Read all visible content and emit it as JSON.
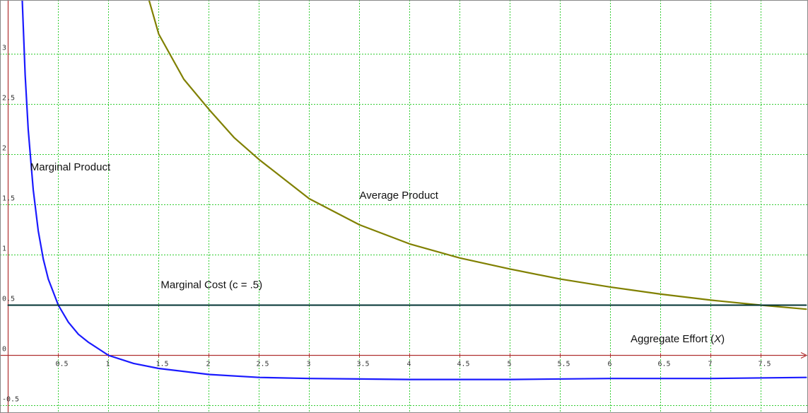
{
  "chart_data": {
    "type": "line",
    "title": "",
    "xlabel": "",
    "ylabel": "",
    "xlim": [
      0,
      7.95
    ],
    "ylim": [
      -0.65,
      3.55
    ],
    "grid": true,
    "x_ticks": [
      0.5,
      1,
      1.5,
      2,
      2.5,
      3,
      3.5,
      4,
      4.5,
      5,
      5.5,
      6,
      6.5,
      7,
      7.5
    ],
    "x_tick_labels": [
      "0.5",
      "1",
      "1.5",
      "2",
      "2.5",
      "3",
      "3.5",
      "4",
      "4.5",
      "5",
      "5.5",
      "6",
      "6.5",
      "7",
      "7.5"
    ],
    "y_ticks": [
      -0.5,
      0,
      0.5,
      1,
      1.5,
      2,
      2.5,
      3
    ],
    "y_tick_labels": [
      "-0.5",
      "0",
      "0.5",
      "1",
      "1.5",
      "2",
      "2.5",
      "3"
    ],
    "series": [
      {
        "name": "Marginal Product",
        "color": "#1a1aff",
        "x": [
          0.14,
          0.17,
          0.2,
          0.25,
          0.3,
          0.35,
          0.4,
          0.5,
          0.6,
          0.7,
          0.8,
          1.0,
          1.25,
          1.5,
          2.0,
          2.5,
          3.0,
          4.0,
          5.0,
          6.0,
          7.0,
          7.95
        ],
        "y": [
          3.55,
          2.79,
          2.25,
          1.65,
          1.24,
          0.96,
          0.76,
          0.5,
          0.33,
          0.21,
          0.13,
          0.0,
          -0.08,
          -0.13,
          -0.19,
          -0.22,
          -0.23,
          -0.24,
          -0.24,
          -0.23,
          -0.23,
          -0.22
        ]
      },
      {
        "name": "Average Product",
        "color": "#808000",
        "x": [
          1.4,
          1.5,
          1.75,
          2.0,
          2.25,
          2.5,
          3.0,
          3.5,
          4.0,
          4.5,
          5.0,
          5.5,
          6.0,
          6.5,
          7.0,
          7.5,
          7.95
        ],
        "y": [
          3.55,
          3.2,
          2.75,
          2.45,
          2.17,
          1.95,
          1.56,
          1.3,
          1.11,
          0.97,
          0.86,
          0.76,
          0.68,
          0.61,
          0.55,
          0.5,
          0.46
        ]
      },
      {
        "name": "Marginal Cost (c = .5)",
        "color": "#003333",
        "x": [
          0,
          7.95
        ],
        "y": [
          0.5,
          0.5
        ]
      }
    ],
    "annotations": [
      {
        "text": "Marginal Product",
        "x": 0.22,
        "y": 1.84
      },
      {
        "text": "Average Product",
        "x": 3.5,
        "y": 1.56
      },
      {
        "text": "Marginal Cost (c = .5)",
        "x": 1.52,
        "y": 0.67
      }
    ],
    "axis_label": {
      "prefix": "Aggregate Effort (",
      "var": "X",
      "suffix": ")"
    },
    "colors": {
      "axis": "#b03030",
      "grid": "#33cc33",
      "frame": "#888888"
    }
  }
}
